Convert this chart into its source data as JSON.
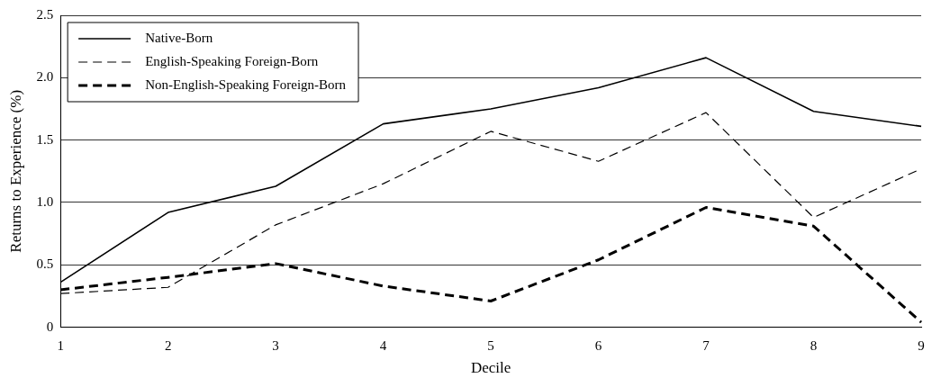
{
  "chart_data": {
    "type": "line",
    "xlabel": "Decile",
    "ylabel": "Returns to Experience (%)",
    "x": [
      1,
      2,
      3,
      4,
      5,
      6,
      7,
      8,
      9
    ],
    "series": [
      {
        "name": "Native-Born",
        "color": "#000000",
        "line_style": "solid",
        "values": [
          0.36,
          0.92,
          1.13,
          1.63,
          1.75,
          1.92,
          2.16,
          1.73,
          1.61
        ]
      },
      {
        "name": "English-Speaking Foreign-Born",
        "color": "#000000",
        "line_style": "dashed",
        "values": [
          0.27,
          0.32,
          0.82,
          1.15,
          1.57,
          1.33,
          1.72,
          0.88,
          1.27
        ]
      },
      {
        "name": "Non-English-Speaking Foreign-Born",
        "color": "#000000",
        "line_style": "dashed",
        "values": [
          0.3,
          0.4,
          0.51,
          0.33,
          0.21,
          0.54,
          0.96,
          0.81,
          0.04
        ]
      }
    ],
    "xlim": [
      1,
      9
    ],
    "xticks": [
      1,
      2,
      3,
      4,
      5,
      6,
      7,
      8,
      9
    ],
    "ylim": [
      0,
      2.5
    ],
    "yticks": [
      0,
      {
        "value": 0.5,
        "label": "0.5"
      },
      {
        "value": 1,
        "label": "1.0"
      },
      {
        "value": 1.5,
        "label": "1.5"
      },
      {
        "value": 2,
        "label": "2.0"
      },
      {
        "value": 2.5,
        "label": "2.5"
      }
    ],
    "grid": "y",
    "legend": "top left",
    "marker": "none"
  }
}
